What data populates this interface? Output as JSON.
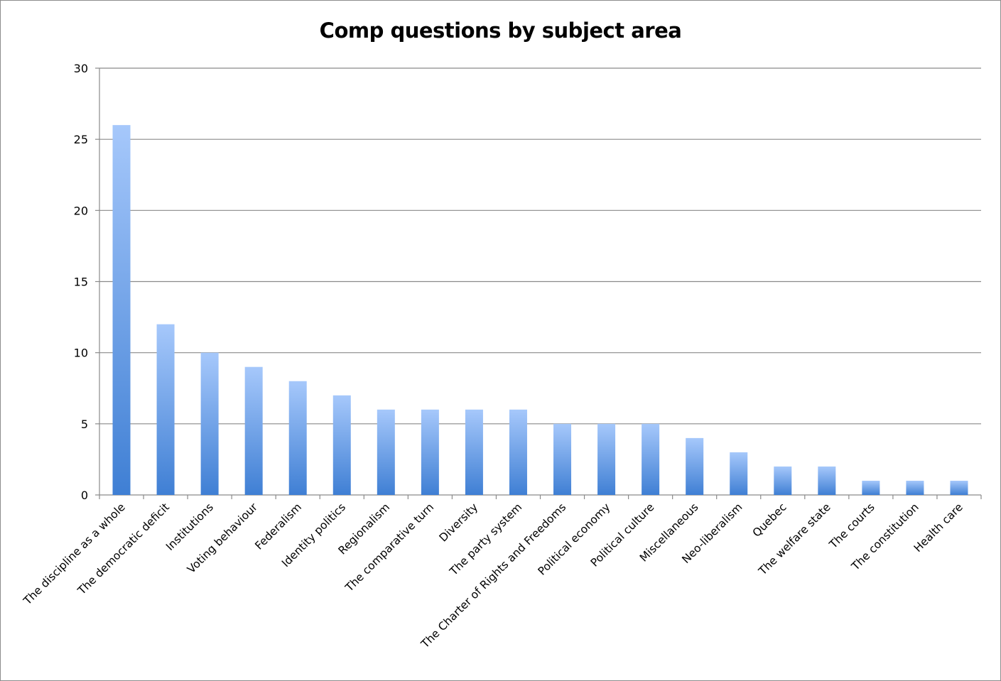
{
  "chart_data": {
    "type": "bar",
    "title": "Comp questions by subject area",
    "xlabel": "",
    "ylabel": "",
    "ylim": [
      0,
      30
    ],
    "yticks": [
      0,
      5,
      10,
      15,
      20,
      25,
      30
    ],
    "grid": true,
    "legend": "none",
    "bar_color_top": "#a6c8fb",
    "bar_color_bottom": "#3f7fd4",
    "categories": [
      "The discipline as a whole",
      "The democratic deficit",
      "Institutions",
      "Voting behaviour",
      "Federalism",
      "Identity politics",
      "Regionalism",
      "The comparative turn",
      "Diversity",
      "The party system",
      "The Charter of Rights and Freedoms",
      "Political economy",
      "Political culture",
      "Miscellaneous",
      "Neo-liberalism",
      "Quebec",
      "The welfare state",
      "The courts",
      "The constitution",
      "Health care"
    ],
    "values": [
      26,
      12,
      10,
      9,
      8,
      7,
      6,
      6,
      6,
      6,
      5,
      5,
      5,
      4,
      3,
      2,
      2,
      1,
      1,
      1
    ]
  }
}
